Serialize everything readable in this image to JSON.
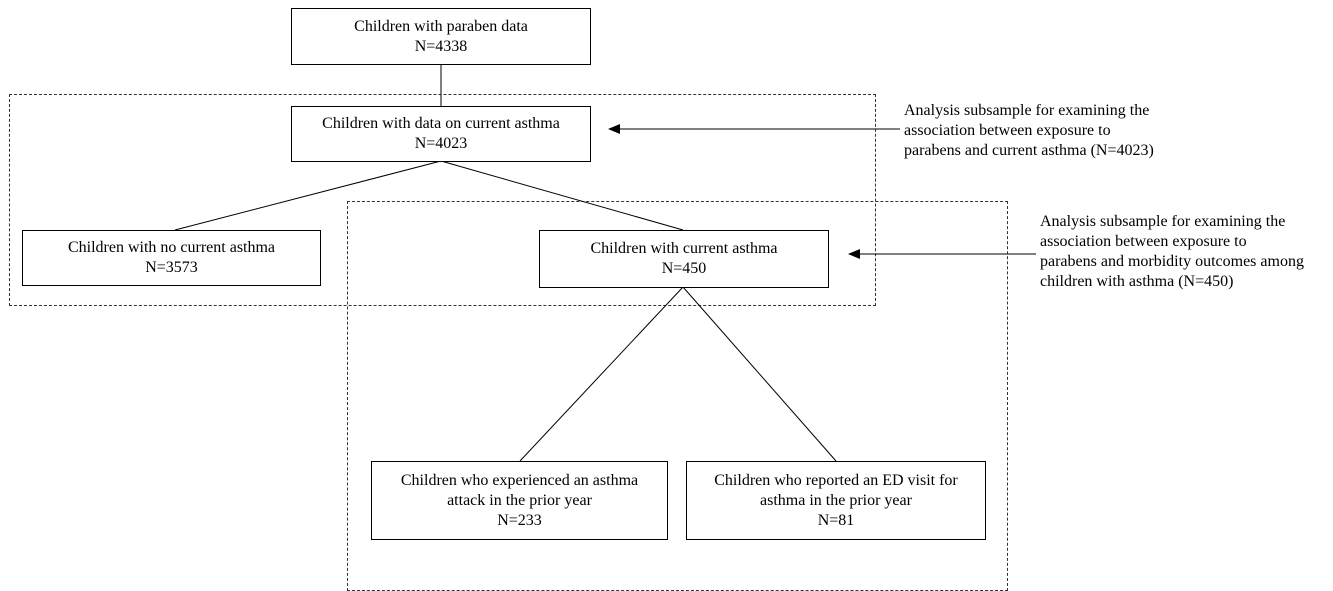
{
  "boxes": {
    "paraben": {
      "line1": "Children with paraben data",
      "line2": "N=4338"
    },
    "current_data": {
      "line1": "Children with data on current asthma",
      "line2": "N=4023"
    },
    "no_asthma": {
      "line1": "Children with no current asthma",
      "line2": "N=3573"
    },
    "with_asthma": {
      "line1": "Children with current asthma",
      "line2": "N=450"
    },
    "attack": {
      "line1": "Children who experienced an asthma",
      "line2": "attack in the prior year",
      "line3": "N=233"
    },
    "ed_visit": {
      "line1": "Children who reported an ED visit for",
      "line2": "asthma in the prior year",
      "line3": "N=81"
    }
  },
  "notes": {
    "subsample1": {
      "line1": "Analysis subsample for examining the",
      "line2": "association between exposure to",
      "line3": "parabens and current asthma (N=4023)"
    },
    "subsample2": {
      "line1": "Analysis subsample for examining the",
      "line2": "association between exposure to",
      "line3": "parabens and morbidity outcomes among",
      "line4": "children with asthma (N=450)"
    }
  }
}
